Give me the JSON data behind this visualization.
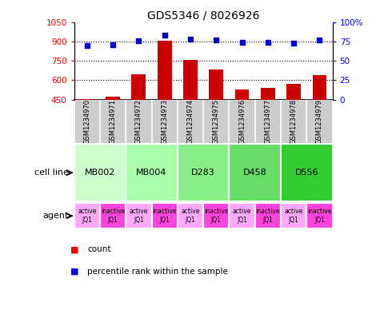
{
  "title": "GDS5346 / 8026926",
  "samples": [
    "GSM1234970",
    "GSM1234971",
    "GSM1234972",
    "GSM1234973",
    "GSM1234974",
    "GSM1234975",
    "GSM1234976",
    "GSM1234977",
    "GSM1234978",
    "GSM1234979"
  ],
  "counts": [
    455,
    470,
    645,
    905,
    755,
    685,
    530,
    540,
    570,
    640
  ],
  "percentiles": [
    70,
    71,
    76,
    83,
    78,
    77,
    74,
    74,
    73,
    77
  ],
  "ylim_left": [
    450,
    1050
  ],
  "ylim_right": [
    0,
    100
  ],
  "yticks_left": [
    450,
    600,
    750,
    900,
    1050
  ],
  "yticks_right": [
    0,
    25,
    50,
    75,
    100
  ],
  "ytick_labels_left": [
    "450",
    "600",
    "750",
    "900",
    "1050"
  ],
  "ytick_labels_right": [
    "0",
    "25",
    "50",
    "75",
    "100%"
  ],
  "hgrid_vals": [
    600,
    750,
    900
  ],
  "cell_lines": [
    {
      "label": "MB002",
      "start": 0,
      "end": 1,
      "color": "#ccffcc"
    },
    {
      "label": "MB004",
      "start": 2,
      "end": 3,
      "color": "#aaffaa"
    },
    {
      "label": "D283",
      "start": 4,
      "end": 5,
      "color": "#88ee88"
    },
    {
      "label": "D458",
      "start": 6,
      "end": 7,
      "color": "#66dd66"
    },
    {
      "label": "D556",
      "start": 8,
      "end": 9,
      "color": "#33cc33"
    }
  ],
  "bar_color": "#cc0000",
  "dot_color": "#0000cc",
  "active_color": "#ffaaff",
  "inactive_color": "#ff44dd",
  "sample_bg_color": "#cccccc",
  "legend_square_size": 8
}
